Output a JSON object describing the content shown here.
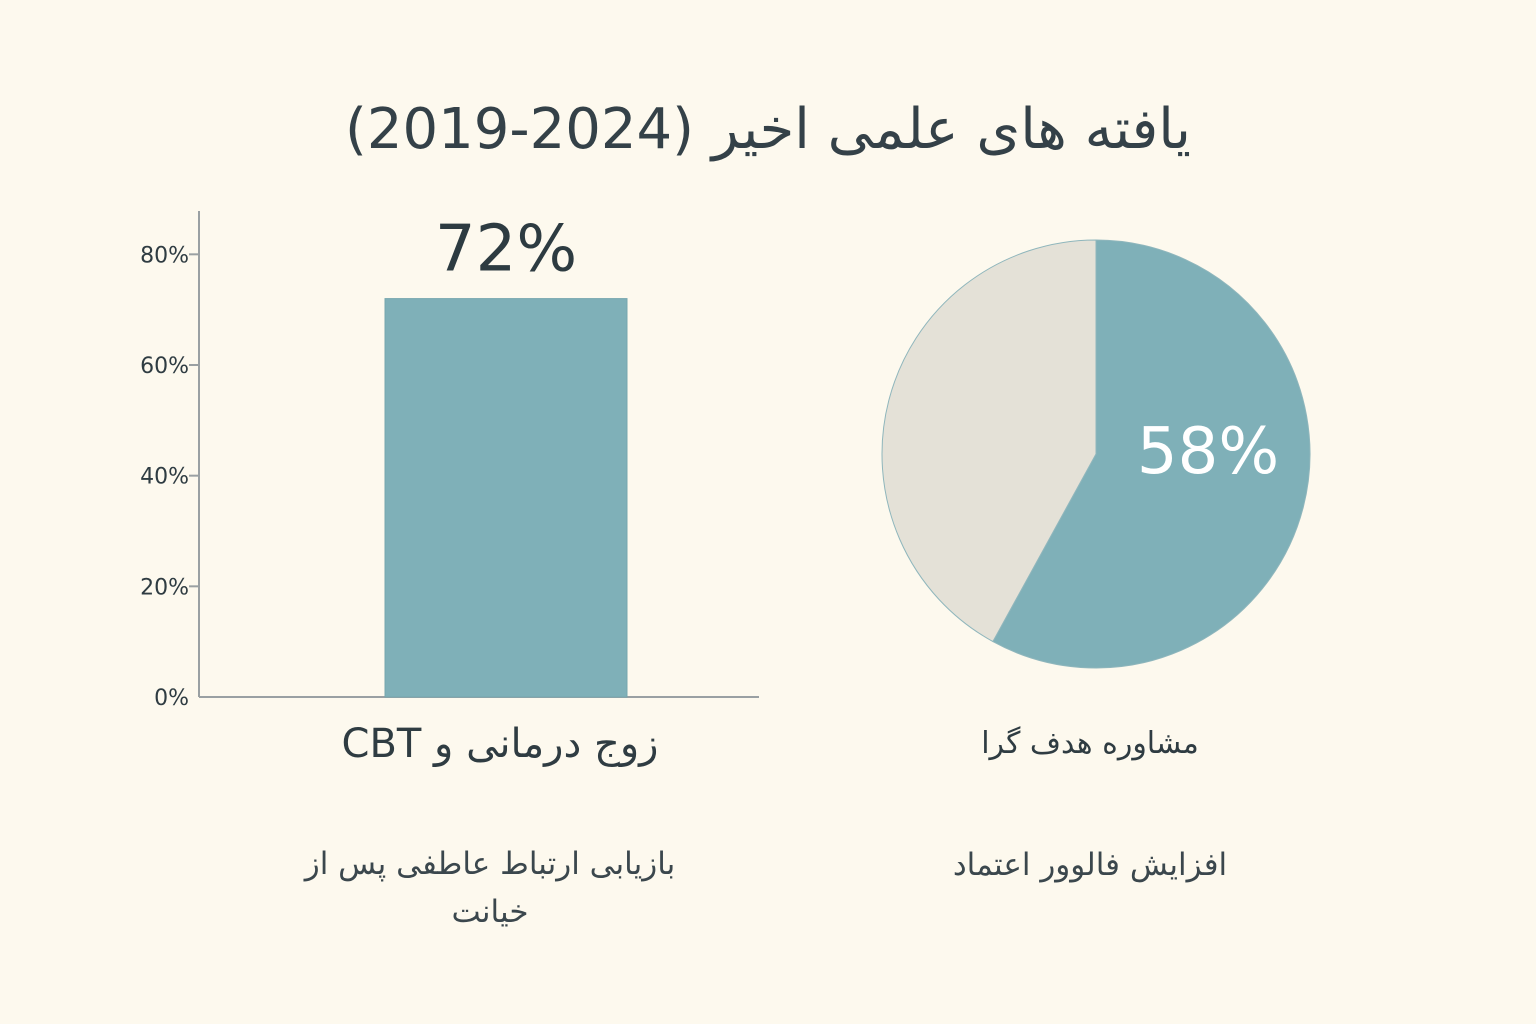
{
  "title": "یافته های علمی اخیر (2024-2019)",
  "colors": {
    "background": "#fdf9ee",
    "accent": "#7fb0b8",
    "muted": "#e4e1d7",
    "text": "#2c3a40",
    "axis": "#9aa0a3"
  },
  "bar_section": {
    "category_label": "زوج درمانی و CBT",
    "caption": "بازیابی ارتباط عاطفی پس از خیانت"
  },
  "pie_section": {
    "category_label": "مشاوره هدف گرا",
    "caption": "افزایش فالوور اعتماد"
  },
  "chart_data": [
    {
      "type": "bar",
      "categories": [
        "زوج درمانی و CBT"
      ],
      "values": [
        72
      ],
      "data_labels": [
        "72%"
      ],
      "y_ticks": [
        "0%",
        "20%",
        "40%",
        "60%",
        "80%"
      ],
      "ylim": [
        0,
        90
      ],
      "grid": false
    },
    {
      "type": "pie",
      "labels": [
        "مشاوره هدف گرا",
        ""
      ],
      "values": [
        58,
        42
      ],
      "data_labels": [
        "58%"
      ],
      "colors": [
        "#7fb0b8",
        "#e4e1d7"
      ]
    }
  ]
}
